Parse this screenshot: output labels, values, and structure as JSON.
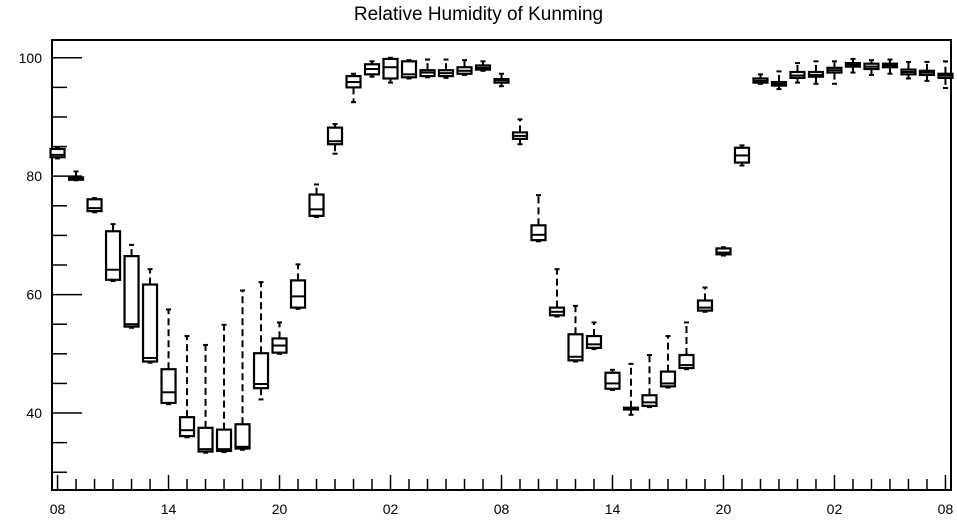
{
  "chart_data": {
    "type": "boxplot",
    "title": "Relative Humidity of Kunming",
    "xlabel": "",
    "ylabel": "",
    "ylim": [
      27,
      103
    ],
    "y_ticks": [
      40,
      60,
      80,
      100
    ],
    "x_tick_labels": [
      "08",
      "14",
      "20",
      "02",
      "08",
      "14",
      "20",
      "02",
      "08"
    ],
    "x_tick_hours": [
      0,
      6,
      12,
      18,
      24,
      30,
      36,
      42,
      48
    ],
    "x_range": [
      -0.3,
      48.3
    ],
    "grid": false,
    "boxes": [
      {
        "hour": 0,
        "min": 83.0,
        "q1": 83.2,
        "median": 83.6,
        "q3": 84.6,
        "max": 84.8
      },
      {
        "hour": 1,
        "min": 79.3,
        "q1": 79.4,
        "median": 79.6,
        "q3": 79.8,
        "max": 80.8
      },
      {
        "hour": 2,
        "min": 73.9,
        "q1": 74.1,
        "median": 74.6,
        "q3": 76.1,
        "max": 76.3
      },
      {
        "hour": 3,
        "min": 62.3,
        "q1": 62.5,
        "median": 64.2,
        "q3": 70.7,
        "max": 71.9
      },
      {
        "hour": 4,
        "min": 54.4,
        "q1": 54.6,
        "median": 55.0,
        "q3": 66.5,
        "max": 68.4
      },
      {
        "hour": 5,
        "min": 48.5,
        "q1": 48.7,
        "median": 49.3,
        "q3": 61.7,
        "max": 64.3
      },
      {
        "hour": 6,
        "min": 41.5,
        "q1": 41.7,
        "median": 43.5,
        "q3": 47.4,
        "max": 57.5
      },
      {
        "hour": 7,
        "min": 35.9,
        "q1": 36.1,
        "median": 37.1,
        "q3": 39.3,
        "max": 53.0
      },
      {
        "hour": 8,
        "min": 33.3,
        "q1": 33.5,
        "median": 33.9,
        "q3": 37.5,
        "max": 51.5
      },
      {
        "hour": 9,
        "min": 33.4,
        "q1": 33.6,
        "median": 33.9,
        "q3": 37.2,
        "max": 54.9
      },
      {
        "hour": 10,
        "min": 33.8,
        "q1": 34.0,
        "median": 34.3,
        "q3": 38.1,
        "max": 60.7
      },
      {
        "hour": 11,
        "min": 42.3,
        "q1": 44.2,
        "median": 44.9,
        "q3": 50.1,
        "max": 62.1
      },
      {
        "hour": 12,
        "min": 50.0,
        "q1": 50.2,
        "median": 51.4,
        "q3": 52.6,
        "max": 55.3
      },
      {
        "hour": 13,
        "min": 57.6,
        "q1": 57.8,
        "median": 59.7,
        "q3": 62.4,
        "max": 65.1
      },
      {
        "hour": 14,
        "min": 73.1,
        "q1": 73.3,
        "median": 74.4,
        "q3": 76.9,
        "max": 78.6
      },
      {
        "hour": 15,
        "min": 83.8,
        "q1": 85.4,
        "median": 85.9,
        "q3": 88.2,
        "max": 88.8
      },
      {
        "hour": 16,
        "min": 92.5,
        "q1": 95.0,
        "median": 95.9,
        "q3": 96.9,
        "max": 97.3
      },
      {
        "hour": 17,
        "min": 96.8,
        "q1": 97.2,
        "median": 98.1,
        "q3": 98.9,
        "max": 99.4
      },
      {
        "hour": 18,
        "min": 95.8,
        "q1": 96.5,
        "median": 98.4,
        "q3": 99.8,
        "max": 100.0
      },
      {
        "hour": 19,
        "min": 96.5,
        "q1": 96.7,
        "median": 97.2,
        "q3": 99.4,
        "max": 99.6
      },
      {
        "hour": 20,
        "min": 96.7,
        "q1": 96.9,
        "median": 97.5,
        "q3": 97.9,
        "max": 99.7
      },
      {
        "hour": 21,
        "min": 96.6,
        "q1": 96.9,
        "median": 97.4,
        "q3": 97.9,
        "max": 99.7
      },
      {
        "hour": 22,
        "min": 97.1,
        "q1": 97.3,
        "median": 97.8,
        "q3": 98.4,
        "max": 99.6
      },
      {
        "hour": 23,
        "min": 97.8,
        "q1": 98.0,
        "median": 98.3,
        "q3": 98.7,
        "max": 99.4
      },
      {
        "hour": 24,
        "min": 95.2,
        "q1": 95.8,
        "median": 96.2,
        "q3": 96.4,
        "max": 97.3
      },
      {
        "hour": 25,
        "min": 85.4,
        "q1": 86.3,
        "median": 86.8,
        "q3": 87.4,
        "max": 89.6
      },
      {
        "hour": 26,
        "min": 69.0,
        "q1": 69.2,
        "median": 70.1,
        "q3": 71.7,
        "max": 76.8
      },
      {
        "hour": 27,
        "min": 56.3,
        "q1": 56.5,
        "median": 57.1,
        "q3": 57.8,
        "max": 64.3
      },
      {
        "hour": 28,
        "min": 48.7,
        "q1": 48.9,
        "median": 49.5,
        "q3": 53.3,
        "max": 58.1
      },
      {
        "hour": 29,
        "min": 50.8,
        "q1": 51.0,
        "median": 51.6,
        "q3": 53.0,
        "max": 55.3
      },
      {
        "hour": 30,
        "min": 43.9,
        "q1": 44.1,
        "median": 45.0,
        "q3": 46.8,
        "max": 47.3
      },
      {
        "hour": 31,
        "min": 39.7,
        "q1": 40.6,
        "median": 40.8,
        "q3": 40.9,
        "max": 48.3
      },
      {
        "hour": 32,
        "min": 41.0,
        "q1": 41.2,
        "median": 41.8,
        "q3": 43.0,
        "max": 49.8
      },
      {
        "hour": 33,
        "min": 44.3,
        "q1": 44.5,
        "median": 45.0,
        "q3": 47.0,
        "max": 53.0
      },
      {
        "hour": 34,
        "min": 47.4,
        "q1": 47.6,
        "median": 48.1,
        "q3": 49.8,
        "max": 55.3
      },
      {
        "hour": 35,
        "min": 57.1,
        "q1": 57.3,
        "median": 57.8,
        "q3": 59.0,
        "max": 61.2
      },
      {
        "hour": 36,
        "min": 66.6,
        "q1": 66.8,
        "median": 67.1,
        "q3": 67.8,
        "max": 68.0
      },
      {
        "hour": 37,
        "min": 81.8,
        "q1": 82.3,
        "median": 83.5,
        "q3": 84.8,
        "max": 85.2
      },
      {
        "hour": 38,
        "min": 95.6,
        "q1": 95.8,
        "median": 96.1,
        "q3": 96.5,
        "max": 97.2
      },
      {
        "hour": 39,
        "min": 94.7,
        "q1": 95.3,
        "median": 95.6,
        "q3": 95.9,
        "max": 97.7
      },
      {
        "hour": 40,
        "min": 95.8,
        "q1": 96.6,
        "median": 97.0,
        "q3": 97.6,
        "max": 99.1
      },
      {
        "hour": 41,
        "min": 95.6,
        "q1": 96.8,
        "median": 97.1,
        "q3": 97.6,
        "max": 99.4
      },
      {
        "hour": 42,
        "min": 95.6,
        "q1": 97.5,
        "median": 97.9,
        "q3": 98.3,
        "max": 99.4
      },
      {
        "hour": 43,
        "min": 97.5,
        "q1": 98.5,
        "median": 98.8,
        "q3": 99.1,
        "max": 99.8
      },
      {
        "hour": 44,
        "min": 97.1,
        "q1": 98.1,
        "median": 98.5,
        "q3": 99.0,
        "max": 99.6
      },
      {
        "hour": 45,
        "min": 97.3,
        "q1": 98.4,
        "median": 98.7,
        "q3": 99.0,
        "max": 99.7
      },
      {
        "hour": 46,
        "min": 96.5,
        "q1": 97.2,
        "median": 97.6,
        "q3": 98.0,
        "max": 99.3
      },
      {
        "hour": 47,
        "min": 96.1,
        "q1": 97.1,
        "median": 97.5,
        "q3": 97.8,
        "max": 99.3
      },
      {
        "hour": 48,
        "min": 94.9,
        "q1": 96.6,
        "median": 97.0,
        "q3": 97.3,
        "max": 99.4
      }
    ]
  }
}
